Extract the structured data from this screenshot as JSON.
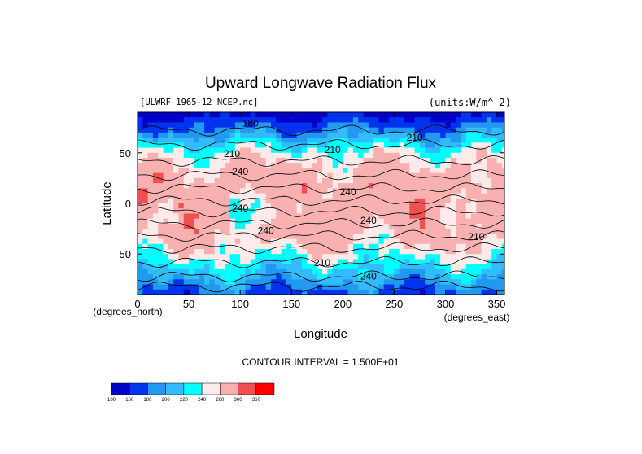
{
  "chart_data": {
    "type": "heatmap",
    "title": "Upward Longwave Radiation Flux",
    "subtitle_left": "[ULWRF_1965-12_NCEP.nc]",
    "subtitle_right": "(units:W/m^-2)",
    "xlabel": "Longitude",
    "ylabel": "Latitude",
    "x_unit_label": "(degrees_east)",
    "y_unit_label": "(degrees_north)",
    "xlim": [
      0,
      357.5
    ],
    "ylim": [
      -90,
      90
    ],
    "x_ticks": [
      0,
      50,
      100,
      150,
      200,
      250,
      300,
      350
    ],
    "y_ticks": [
      -50,
      0,
      50
    ],
    "contour_interval_text": "CONTOUR INTERVAL = 1.500E+01",
    "contour_labels": [
      "180",
      "210",
      "210",
      "210",
      "240",
      "240",
      "240",
      "240",
      "240",
      "210",
      "210",
      "240"
    ],
    "colorbar": {
      "levels": [
        100,
        150,
        180,
        200,
        220,
        240,
        260,
        300,
        360
      ],
      "colors": [
        "#0000c8",
        "#0033ee",
        "#2299f0",
        "#33bbff",
        "#00ffff",
        "#ffeaea",
        "#f8b0b0",
        "#f05050",
        "#ff0000"
      ]
    }
  }
}
